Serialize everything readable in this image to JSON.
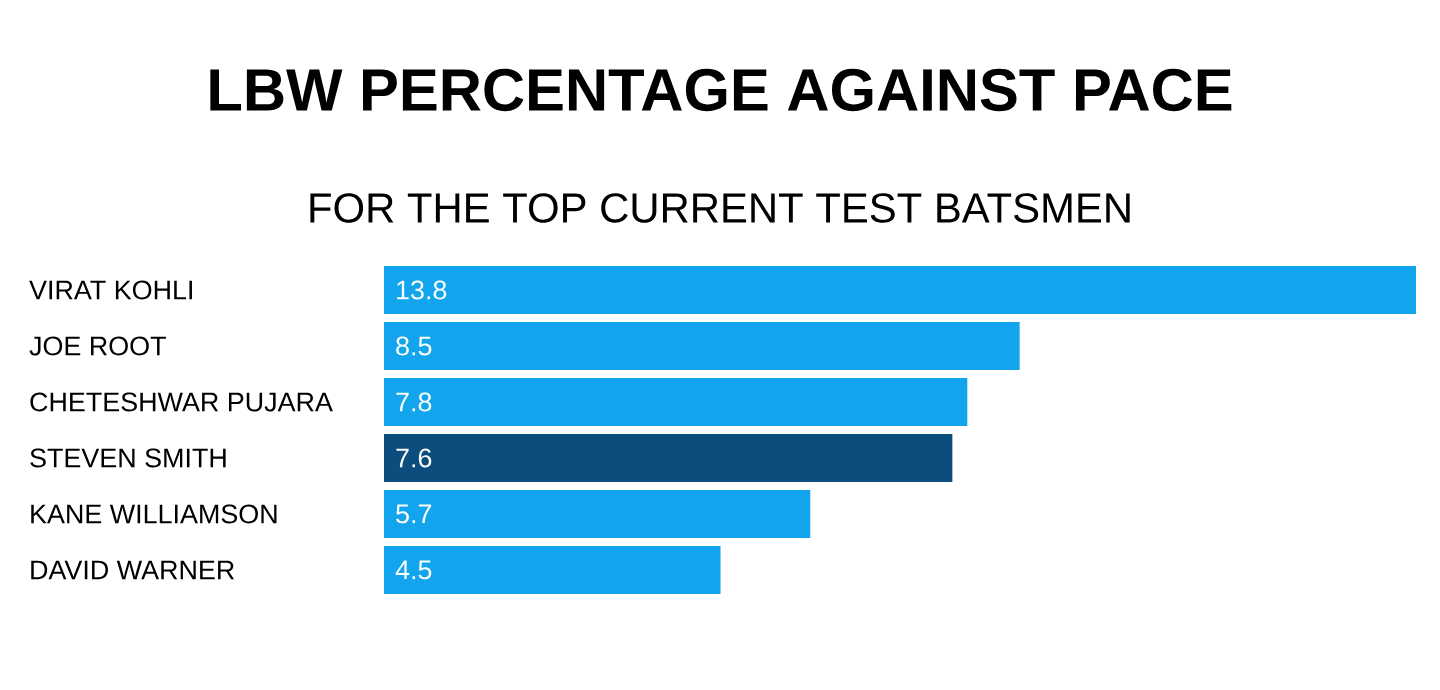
{
  "chart_data": {
    "type": "bar",
    "orientation": "horizontal",
    "title": "LBW PERCENTAGE AGAINST PACE",
    "subtitle": "FOR THE TOP CURRENT TEST BATSMEN",
    "categories": [
      "VIRAT KOHLI",
      "JOE ROOT",
      "CHETESHWAR PUJARA",
      "STEVEN SMITH",
      "KANE WILLIAMSON",
      "DAVID WARNER"
    ],
    "values": [
      13.8,
      8.5,
      7.8,
      7.6,
      5.7,
      4.5
    ],
    "colors": [
      "#12a5ee",
      "#12a5ee",
      "#12a5ee",
      "#0b4d7c",
      "#12a5ee",
      "#12a5ee"
    ],
    "data_labels": true
  }
}
